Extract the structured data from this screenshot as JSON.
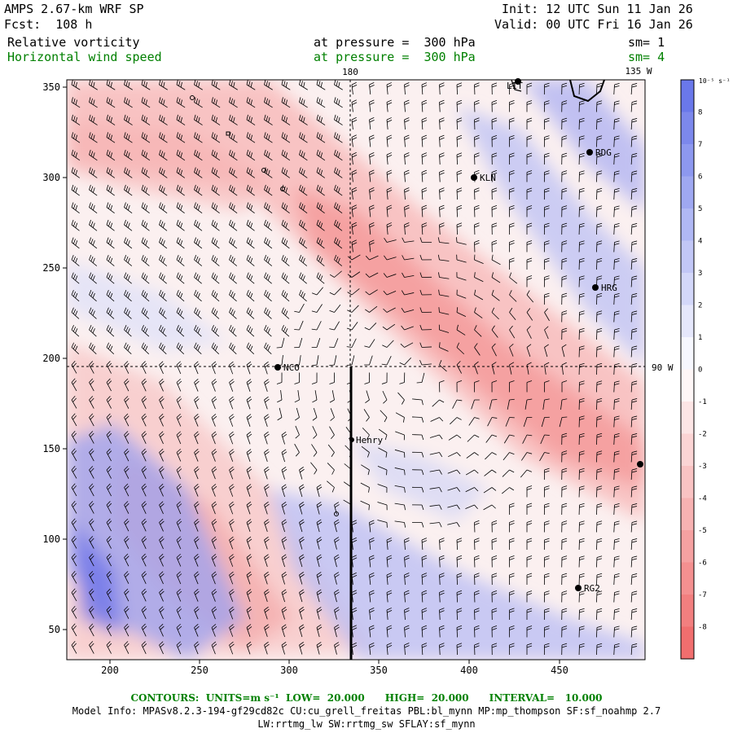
{
  "header": {
    "model": "AMPS 2.67-km WRF SP",
    "fcst": "Fcst:  108 h",
    "init": "Init: 12 UTC Sun 11 Jan 26",
    "valid": "Valid: 00 UTC Fri 16 Jan 26",
    "field1": "Relative vorticity",
    "field1_level": "at pressure =  300 hPa",
    "field1_sm": "sm= 1",
    "field2": "Horizontal wind speed",
    "field2_level": "at pressure =  300 hPa",
    "field2_sm": "sm= 4"
  },
  "map": {
    "lon_180": "180",
    "lon_135w": "135 W",
    "lat_90w": "90 W",
    "x_ticks": [
      "200",
      "250",
      "300",
      "350",
      "400",
      "450"
    ],
    "y_ticks": [
      "350",
      "300",
      "250",
      "200",
      "150",
      "100",
      "50"
    ],
    "stations": [
      {
        "label": "NCO"
      },
      {
        "label": "Henry"
      },
      {
        "label": "KLN"
      },
      {
        "label": "RDG"
      },
      {
        "label": "HRG"
      },
      {
        "label": "RG2"
      },
      {
        "label": "LIT"
      }
    ]
  },
  "colorbar": {
    "unit": "10⁻⁵ s⁻¹",
    "labels": [
      "8",
      "7",
      "6",
      "5",
      "4",
      "3",
      "2",
      "1",
      "0",
      "-1",
      "-2",
      "-3",
      "-4",
      "-5",
      "-6",
      "-7",
      "-8"
    ],
    "positive_color": "#7a7ff0",
    "negative_color": "#f07a7a"
  },
  "footer": {
    "contours": "CONTOURS:  UNITS=m s⁻¹  LOW=  20.000      HIGH=  20.000      INTERVAL=   10.000",
    "model_info": "Model Info: MPASv8.2.3-194-gf29cd82c CU:cu_grell_freitas PBL:bl_mynn MP:mp_thompson SF:sf_noahmp 2.7",
    "physics": "LW:rrtmg_lw SW:rrtmg_sw SFLAY:sf_mynn"
  }
}
